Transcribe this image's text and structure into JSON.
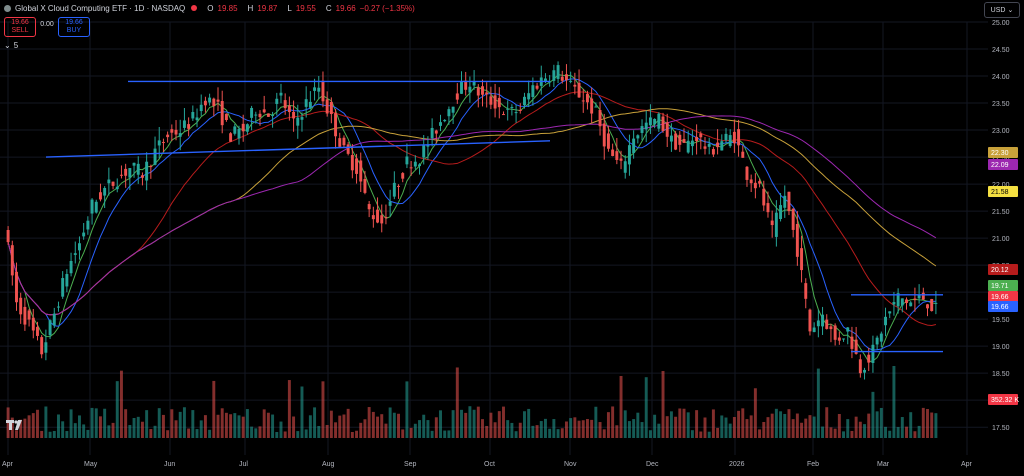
{
  "header": {
    "title": "Global X Cloud Computing ETF · 1D · NASDAQ",
    "ohlc": {
      "o_label": "O",
      "o": "19.85",
      "h_label": "H",
      "h": "19.87",
      "l_label": "L",
      "l": "19.55",
      "c_label": "C",
      "c": "19.66",
      "change": "−0.27 (−1.35%)"
    }
  },
  "trade": {
    "sell_price": "19.66",
    "sell_label": "SELL",
    "spread": "0.00",
    "buy_price": "19.66",
    "buy_label": "BUY"
  },
  "indicators_toggle": {
    "icon": "chevron-down-icon",
    "count": "5"
  },
  "currency": {
    "label": "USD",
    "icon": "chevron-down-icon"
  },
  "colors": {
    "up": "#26a69a",
    "down": "#ef5350",
    "ma_green": "#4caf50",
    "ma_blue": "#2962ff",
    "ma_red": "#b71c1c",
    "ma_orange": "#c8a13a",
    "ma_purple": "#9c27b0",
    "trendline": "#2962ff",
    "vol_up": "#26a69a",
    "vol_down": "#ef5350"
  },
  "chart_data": {
    "type": "candlestick",
    "y_axis": {
      "range": [
        17.3,
        25.0
      ],
      "ticks": [
        "25.00",
        "24.50",
        "24.00",
        "23.50",
        "23.00",
        "22.50",
        "22.00",
        "21.50",
        "21.00",
        "20.50",
        "20.00",
        "19.50",
        "19.00",
        "18.50",
        "18.00",
        "17.50"
      ]
    },
    "x_axis": {
      "labels": [
        "Apr",
        "May",
        "Jun",
        "Jul",
        "Aug",
        "Sep",
        "Oct",
        "Nov",
        "Dec",
        "2026",
        "Feb",
        "Mar",
        "Apr"
      ]
    },
    "price_labels": [
      {
        "value": "22.30",
        "color": "#c8a13a"
      },
      {
        "value": "22.09",
        "color": "#9c27b0"
      },
      {
        "value": "21.58",
        "color": "#f5e042"
      },
      {
        "value": "20.12",
        "color": "#b71c1c"
      },
      {
        "value": "19.71",
        "color": "#4caf50"
      },
      {
        "value": "19.66",
        "color": "#f23645"
      },
      {
        "value": "19.66",
        "color": "#2962ff"
      },
      {
        "value": "352.32 K",
        "color": "#f23645"
      }
    ],
    "anchors": [
      [
        "Apr",
        21.3
      ],
      [
        "Apr",
        19.8
      ],
      [
        "Apr",
        19.4
      ],
      [
        "Apr",
        18.9
      ],
      [
        "Apr",
        19.6
      ],
      [
        "Apr",
        20.4
      ],
      [
        "May",
        20.9
      ],
      [
        "May",
        21.6
      ],
      [
        "May",
        21.9
      ],
      [
        "May",
        22.1
      ],
      [
        "May",
        22.3
      ],
      [
        "May",
        22.2
      ],
      [
        "May",
        22.6
      ],
      [
        "May",
        22.9
      ],
      [
        "Jun",
        23.0
      ],
      [
        "Jun",
        23.2
      ],
      [
        "Jun",
        23.6
      ],
      [
        "Jun",
        23.4
      ],
      [
        "Jun",
        22.9
      ],
      [
        "Jun",
        23.0
      ],
      [
        "Jul",
        23.4
      ],
      [
        "Jul",
        23.3
      ],
      [
        "Jul",
        23.6
      ],
      [
        "Jul",
        23.1
      ],
      [
        "Jul",
        23.5
      ],
      [
        "Jul",
        23.8
      ],
      [
        "Aug",
        23.2
      ],
      [
        "Aug",
        22.6
      ],
      [
        "Aug",
        22.3
      ],
      [
        "Aug",
        21.5
      ],
      [
        "Aug",
        21.3
      ],
      [
        "Aug",
        21.9
      ],
      [
        "Sep",
        22.4
      ],
      [
        "Sep",
        22.5
      ],
      [
        "Sep",
        22.9
      ],
      [
        "Sep",
        23.3
      ],
      [
        "Sep",
        23.7
      ],
      [
        "Sep",
        23.9
      ],
      [
        "Oct",
        23.6
      ],
      [
        "Oct",
        23.5
      ],
      [
        "Oct",
        23.3
      ],
      [
        "Oct",
        23.4
      ],
      [
        "Oct",
        23.8
      ],
      [
        "Oct",
        24.0
      ],
      [
        "Nov",
        24.1
      ],
      [
        "Nov",
        23.8
      ],
      [
        "Nov",
        23.6
      ],
      [
        "Nov",
        23.3
      ],
      [
        "Nov",
        22.6
      ],
      [
        "Nov",
        22.3
      ],
      [
        "Dec",
        22.9
      ],
      [
        "Dec",
        23.1
      ],
      [
        "Dec",
        23.2
      ],
      [
        "Dec",
        22.8
      ],
      [
        "Dec",
        22.7
      ],
      [
        "Dec",
        22.9
      ],
      [
        "2026",
        22.6
      ],
      [
        "2026",
        22.8
      ],
      [
        "2026",
        22.9
      ],
      [
        "2026",
        22.2
      ],
      [
        "2026",
        21.9
      ],
      [
        "2026",
        21.1
      ],
      [
        "Feb",
        21.8
      ],
      [
        "Feb",
        20.8
      ],
      [
        "Feb",
        19.3
      ],
      [
        "Feb",
        19.6
      ],
      [
        "Feb",
        19.1
      ],
      [
        "Feb",
        19.3
      ],
      [
        "Mar",
        18.6
      ],
      [
        "Mar",
        18.9
      ],
      [
        "Mar",
        19.5
      ],
      [
        "Mar",
        19.9
      ],
      [
        "Mar",
        19.8
      ],
      [
        "Mar",
        19.9
      ],
      [
        "Mar",
        19.66
      ]
    ],
    "trendlines": [
      {
        "from": [
          "May",
          23.9
        ],
        "to": [
          "Oct",
          23.9
        ]
      },
      {
        "from": [
          "Apr",
          22.5
        ],
        "to": [
          "Oct",
          22.8
        ]
      },
      {
        "from": [
          "Feb",
          19.95
        ],
        "to": [
          "Mar",
          19.95
        ]
      },
      {
        "from": [
          "Feb",
          18.9
        ],
        "to": [
          "Mar",
          18.9
        ]
      }
    ]
  }
}
